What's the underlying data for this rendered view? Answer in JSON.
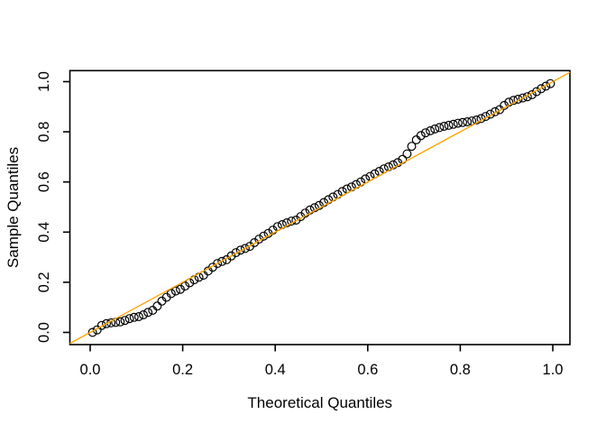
{
  "figure": {
    "background": "#ffffff",
    "colors": {
      "axis": "#000000",
      "point_stroke": "#000000",
      "reference_line": "#FFA500"
    }
  },
  "chart_data": {
    "type": "scatter",
    "title": "",
    "xlabel": "Theoretical Quantiles",
    "ylabel": "Sample Quantiles",
    "xlim": [
      -0.044,
      1.037
    ],
    "ylim": [
      -0.049,
      1.044
    ],
    "grid": false,
    "legend": "none",
    "x_ticks": [
      0.0,
      0.2,
      0.4,
      0.6,
      0.8,
      1.0
    ],
    "x_tick_labels": [
      "0.0",
      "0.2",
      "0.4",
      "0.6",
      "0.8",
      "1.0"
    ],
    "y_ticks": [
      0.0,
      0.2,
      0.4,
      0.6,
      0.8,
      1.0
    ],
    "y_tick_labels": [
      "0.0",
      "0.2",
      "0.4",
      "0.6",
      "0.8",
      "1.0"
    ],
    "series": [
      {
        "name": "sample-quantile-points",
        "type": "scatter",
        "marker": "open-circle",
        "color": "#000000",
        "x": [
          0.005,
          0.015,
          0.025,
          0.035,
          0.045,
          0.055,
          0.065,
          0.075,
          0.085,
          0.095,
          0.105,
          0.115,
          0.125,
          0.135,
          0.145,
          0.155,
          0.165,
          0.175,
          0.185,
          0.195,
          0.205,
          0.215,
          0.225,
          0.235,
          0.245,
          0.255,
          0.265,
          0.275,
          0.285,
          0.295,
          0.305,
          0.315,
          0.325,
          0.335,
          0.345,
          0.355,
          0.365,
          0.375,
          0.385,
          0.395,
          0.405,
          0.415,
          0.425,
          0.435,
          0.445,
          0.455,
          0.465,
          0.475,
          0.485,
          0.495,
          0.505,
          0.515,
          0.525,
          0.535,
          0.545,
          0.555,
          0.565,
          0.575,
          0.585,
          0.595,
          0.605,
          0.615,
          0.625,
          0.635,
          0.645,
          0.655,
          0.665,
          0.675,
          0.685,
          0.695,
          0.705,
          0.715,
          0.725,
          0.735,
          0.745,
          0.755,
          0.765,
          0.775,
          0.785,
          0.795,
          0.805,
          0.815,
          0.825,
          0.835,
          0.845,
          0.855,
          0.865,
          0.875,
          0.885,
          0.895,
          0.905,
          0.915,
          0.925,
          0.935,
          0.945,
          0.955,
          0.965,
          0.975,
          0.985,
          0.995
        ],
        "y": [
          0.0,
          0.01,
          0.028,
          0.035,
          0.038,
          0.04,
          0.042,
          0.048,
          0.055,
          0.06,
          0.063,
          0.07,
          0.08,
          0.088,
          0.105,
          0.125,
          0.14,
          0.155,
          0.165,
          0.172,
          0.185,
          0.198,
          0.21,
          0.22,
          0.228,
          0.245,
          0.26,
          0.275,
          0.283,
          0.29,
          0.305,
          0.318,
          0.328,
          0.335,
          0.343,
          0.358,
          0.372,
          0.384,
          0.395,
          0.408,
          0.422,
          0.43,
          0.437,
          0.444,
          0.448,
          0.462,
          0.476,
          0.488,
          0.497,
          0.506,
          0.518,
          0.529,
          0.54,
          0.55,
          0.562,
          0.572,
          0.58,
          0.59,
          0.6,
          0.612,
          0.622,
          0.632,
          0.642,
          0.652,
          0.66,
          0.668,
          0.677,
          0.69,
          0.712,
          0.742,
          0.768,
          0.785,
          0.796,
          0.804,
          0.811,
          0.817,
          0.822,
          0.826,
          0.83,
          0.834,
          0.837,
          0.84,
          0.843,
          0.847,
          0.853,
          0.861,
          0.87,
          0.88,
          0.888,
          0.905,
          0.918,
          0.925,
          0.93,
          0.935,
          0.94,
          0.948,
          0.96,
          0.972,
          0.982,
          0.992
        ]
      },
      {
        "name": "reference-line",
        "type": "line",
        "equation": "y = x",
        "color": "#FFA500",
        "x": [
          -0.0439,
          1.0371
        ],
        "y": [
          -0.0439,
          1.0371
        ]
      }
    ]
  }
}
